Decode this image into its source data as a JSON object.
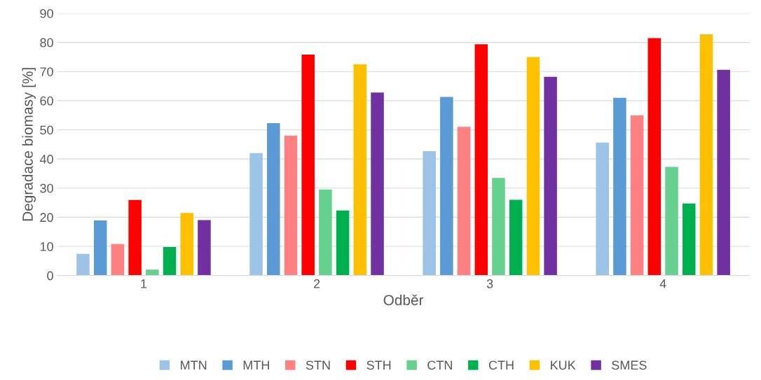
{
  "chart_data": {
    "type": "bar",
    "xlabel": "Odběr",
    "ylabel": "Degradace biomasy [%]",
    "categories": [
      "1",
      "2",
      "3",
      "4"
    ],
    "ylim": [
      0,
      90
    ],
    "yticks": [
      0,
      10,
      20,
      30,
      40,
      50,
      60,
      70,
      80,
      90
    ],
    "grid": "y",
    "legend": "bottom",
    "series": [
      {
        "name": "MTN",
        "color": "#9dc3e6",
        "values": [
          7.4,
          42,
          42.7,
          45.6
        ]
      },
      {
        "name": "MTH",
        "color": "#5b9bd5",
        "values": [
          18.9,
          52.3,
          61.3,
          61
        ]
      },
      {
        "name": "STN",
        "color": "#ff8080",
        "values": [
          10.8,
          48,
          51,
          55
        ]
      },
      {
        "name": "STH",
        "color": "#ff0000",
        "values": [
          25.9,
          75.8,
          79.4,
          81.5
        ]
      },
      {
        "name": "CTN",
        "color": "#66d08f",
        "values": [
          2,
          29.5,
          33.5,
          37.3
        ]
      },
      {
        "name": "CTH",
        "color": "#00b050",
        "values": [
          9.8,
          22.3,
          26,
          24.7
        ]
      },
      {
        "name": "KUK",
        "color": "#ffc000",
        "values": [
          21.5,
          72.5,
          75,
          82.8
        ]
      },
      {
        "name": "SMES",
        "color": "#7030a0",
        "values": [
          19,
          62.8,
          68.2,
          70.6
        ]
      }
    ]
  }
}
